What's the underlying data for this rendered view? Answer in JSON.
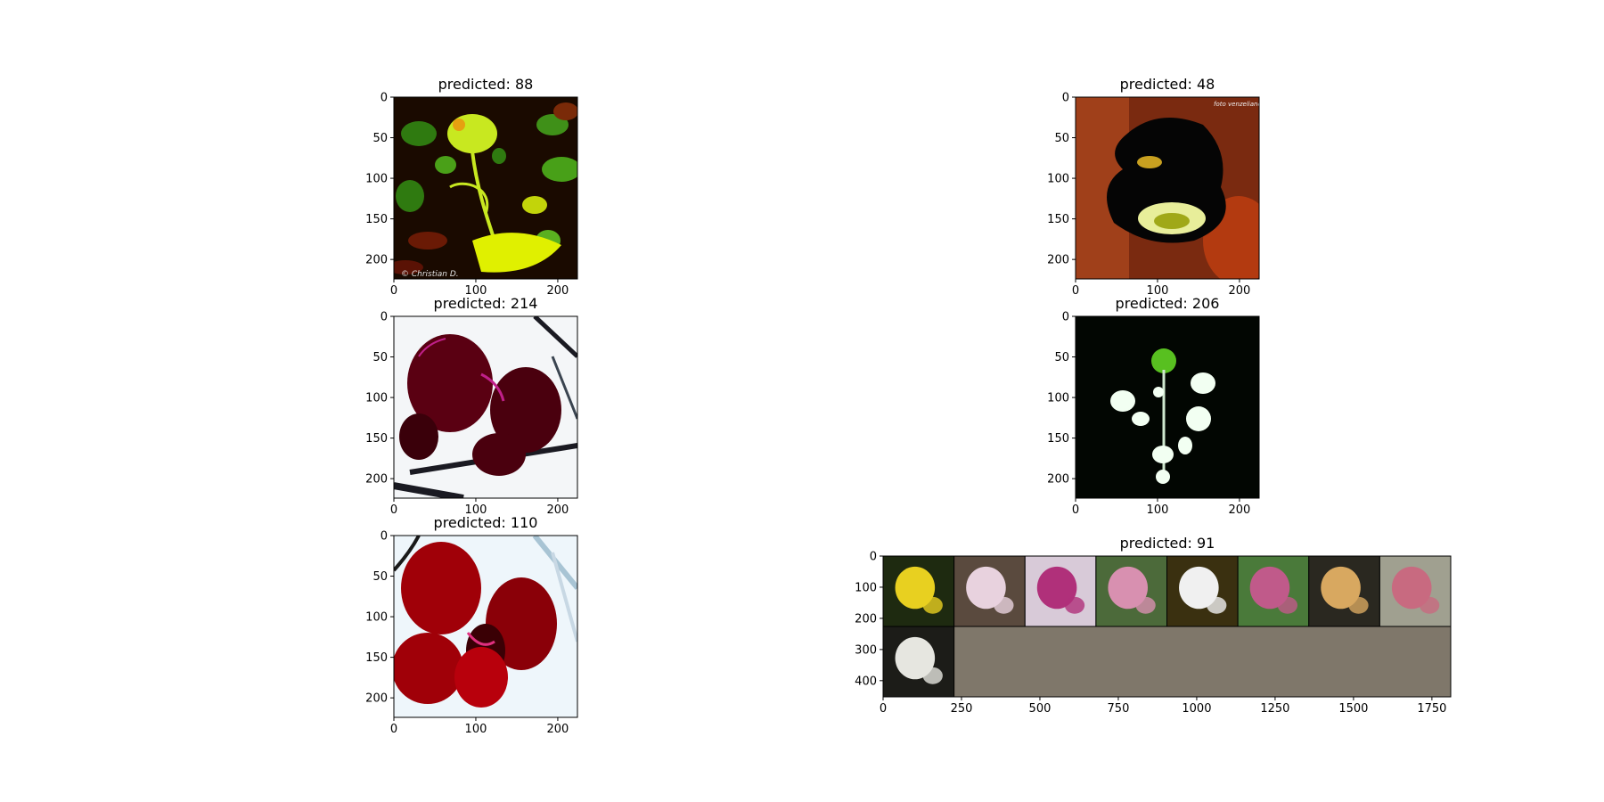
{
  "chart_data": [
    {
      "type": "image",
      "title": "predicted: 88",
      "xlim": [
        0,
        224
      ],
      "ylim": [
        224,
        0
      ],
      "xticks": [
        0,
        100,
        200
      ],
      "yticks": [
        0,
        50,
        100,
        150,
        200
      ],
      "image_description_tags": [
        "green-yellow-orchid-spike",
        "dark-foliage-background"
      ],
      "watermark": "© Christian D.",
      "palette": {
        "bg": "#1a0a00",
        "leaf": "#2f7a10",
        "flower": "#c8e820",
        "accent": "#e0f000",
        "warm": "#6a1a05"
      }
    },
    {
      "type": "image",
      "title": "predicted: 48",
      "xlim": [
        0,
        224
      ],
      "ylim": [
        224,
        0
      ],
      "xticks": [
        0,
        100,
        200
      ],
      "yticks": [
        0,
        50,
        100,
        150,
        200
      ],
      "image_description_tags": [
        "dark-orchid",
        "white-yellow-lip",
        "orange-red-background"
      ],
      "watermark": "foto venzeliano",
      "palette": {
        "bg": "#7a2a10",
        "petal": "#050505",
        "lip": "#e8ee9a",
        "accent": "#c8a020",
        "warm": "#b33a10"
      }
    },
    {
      "type": "image",
      "title": "predicted: 214",
      "xlim": [
        0,
        224
      ],
      "ylim": [
        224,
        0
      ],
      "xticks": [
        0,
        100,
        200
      ],
      "yticks": [
        0,
        50,
        100,
        150,
        200
      ],
      "image_description_tags": [
        "dark-red-orchid",
        "white-background",
        "branches"
      ],
      "palette": {
        "bg": "#f4f6f8",
        "petal": "#5a0012",
        "edge": "#c0208a",
        "branch": "#1a1a22"
      }
    },
    {
      "type": "image",
      "title": "predicted: 206",
      "xlim": [
        0,
        224
      ],
      "ylim": [
        224,
        0
      ],
      "xticks": [
        0,
        100,
        200
      ],
      "yticks": [
        0,
        50,
        100,
        150,
        200
      ],
      "image_description_tags": [
        "white-orchid-spike",
        "black-background"
      ],
      "palette": {
        "bg": "#020602",
        "flower": "#f2fff2",
        "bud": "#58c020"
      }
    },
    {
      "type": "image",
      "title": "predicted: 110",
      "xlim": [
        0,
        224
      ],
      "ylim": [
        224,
        0
      ],
      "xticks": [
        0,
        100,
        200
      ],
      "yticks": [
        0,
        50,
        100,
        150,
        200
      ],
      "image_description_tags": [
        "red-orchid",
        "white-blue-background"
      ],
      "palette": {
        "bg": "#eef6fb",
        "petal": "#a00008",
        "dark": "#3a0005",
        "edge": "#e03080"
      }
    },
    {
      "type": "image_grid",
      "title": "predicted: 91",
      "xlim": [
        0,
        1810
      ],
      "ylim": [
        452,
        0
      ],
      "xticks": [
        0,
        250,
        500,
        750,
        1000,
        1250,
        1500,
        1750
      ],
      "yticks": [
        0,
        100,
        200,
        300,
        400
      ],
      "grid_rows": 2,
      "grid_cols": 8,
      "tiles_filled": 9,
      "padding_color": "#7f776a",
      "tiles": [
        {
          "tag": "yellow-orchid",
          "bg": "#1e2a10",
          "flower": "#e8d020"
        },
        {
          "tag": "pale-pink-orchid",
          "bg": "#5a4a3e",
          "flower": "#e8d2de"
        },
        {
          "tag": "magenta-spotted-orchid",
          "bg": "#d8cad8",
          "flower": "#b0307a"
        },
        {
          "tag": "pink-orchids-green-leaves",
          "bg": "#4c6a3a",
          "flower": "#d890b0"
        },
        {
          "tag": "white-orchid-dark-bg",
          "bg": "#3a3010",
          "flower": "#f0f0f0"
        },
        {
          "tag": "pink-orchids-leaves",
          "bg": "#4a7a3a",
          "flower": "#c05a8a"
        },
        {
          "tag": "tan-orchid",
          "bg": "#2a2820",
          "flower": "#d8a860"
        },
        {
          "tag": "pink-spike-orchid",
          "bg": "#a0a090",
          "flower": "#c86a80"
        },
        {
          "tag": "white-spiky-orchid",
          "bg": "#1c1c18",
          "flower": "#e6e6e0"
        }
      ]
    }
  ]
}
